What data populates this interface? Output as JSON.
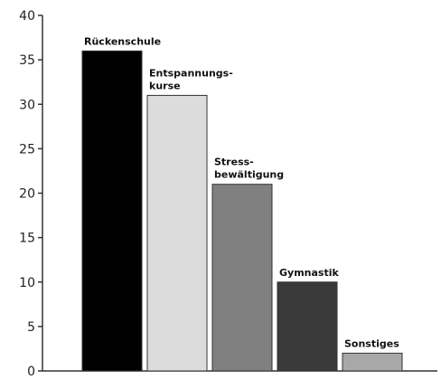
{
  "chart_data": {
    "type": "bar",
    "title": "",
    "xlabel": "",
    "ylabel": "",
    "ylim": [
      0,
      40
    ],
    "yticks": [
      0,
      5,
      10,
      15,
      20,
      25,
      30,
      35,
      40
    ],
    "grid": false,
    "categories": [
      [
        "Rückenschule"
      ],
      [
        "Entspannungs-",
        "kurse"
      ],
      [
        "Stress-",
        "bewältigung"
      ],
      [
        "Gymnastik"
      ],
      [
        "Sonstiges"
      ]
    ],
    "values": [
      36,
      31,
      21,
      10,
      2
    ],
    "colors": [
      "#000000",
      "#dcdcdc",
      "#808080",
      "#3a3a3a",
      "#a8a8a8"
    ]
  }
}
